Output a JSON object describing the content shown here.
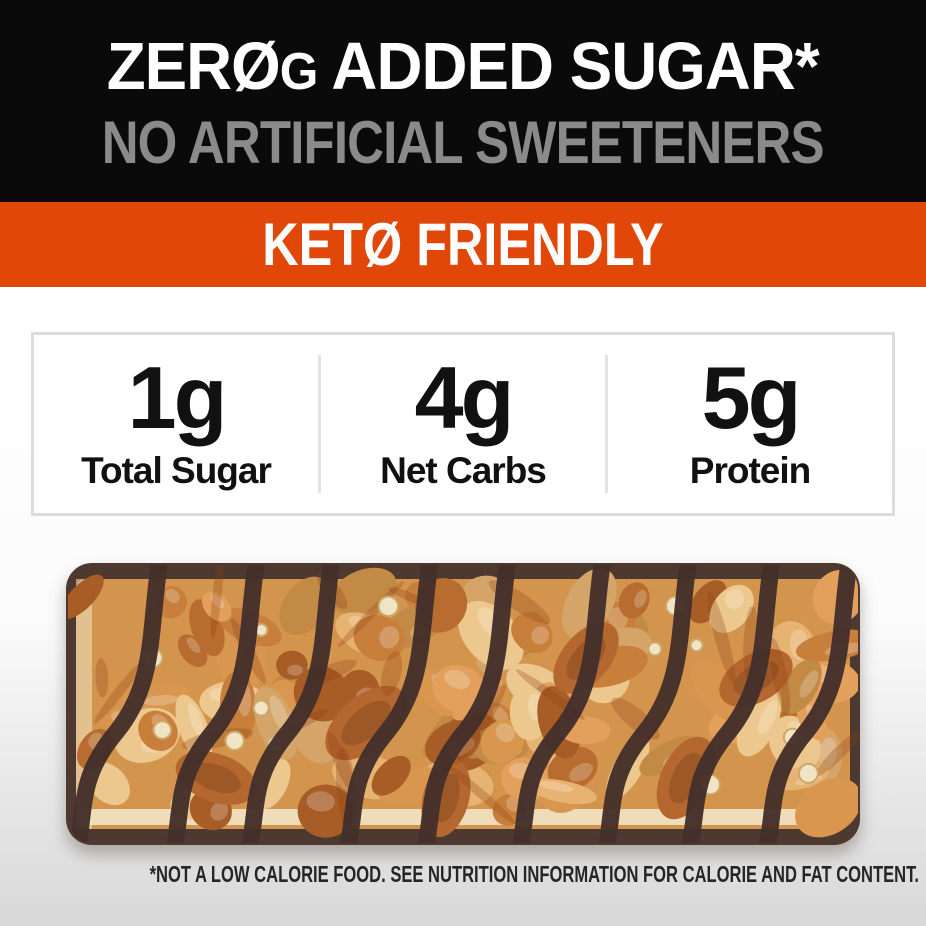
{
  "banner": {
    "headline_zero": "ZERØ",
    "headline_unit": "G",
    "headline_rest": "ADDED SUGAR*",
    "subheadline": "NO ARTIFICIAL SWEETENERS"
  },
  "keto_banner": {
    "label": "KETØ FRIENDLY"
  },
  "stats": {
    "items": [
      {
        "value": "1g",
        "label": "Total Sugar"
      },
      {
        "value": "4g",
        "label": "Net Carbs"
      },
      {
        "value": "5g",
        "label": "Protein"
      }
    ]
  },
  "footer": {
    "disclaimer": "*NOT A LOW CALORIE FOOD. SEE NUTRITION INFORMATION FOR CALORIE AND FAT CONTENT."
  },
  "colors": {
    "banner_bg": "#0a0a0a",
    "headline_text": "#ffffff",
    "subheadline_text": "#8a8a8a",
    "keto_bg": "#e2470a",
    "keto_text": "#ffffff",
    "stats_border": "#dcdcdc",
    "stats_divider": "#e3e3e3",
    "stat_text": "#111111",
    "page_gradient_bottom": "#d3d3d3",
    "disclaimer_text": "#262626"
  },
  "product_image": {
    "description": "chocolate-drizzled caramel nut bar",
    "colors": {
      "chocolate_base": "#4e3930",
      "drizzle": "#44302a",
      "caramel": "#d3954e",
      "almond": "#b4682f",
      "almond_core": "#8a4a20",
      "glaze": "#8d3c12",
      "cream": "#f1e4c4",
      "puff_ring": "#c9a86a",
      "nuts": [
        "#e7b372",
        "#d8964e",
        "#c87f3c",
        "#b86c2f",
        "#edc88e",
        "#a85d26",
        "#e2a05c",
        "#d4a468",
        "#c28a45"
      ]
    }
  }
}
